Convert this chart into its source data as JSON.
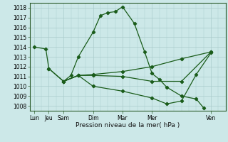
{
  "xlabel": "Pression niveau de la mer( hPa )",
  "bg_color": "#cce8e8",
  "grid_color": "#aacccc",
  "line_color": "#1a5c1a",
  "tick_labels": [
    "Lun",
    "Jeu",
    "Sam",
    "Dim",
    "Mar",
    "Mer",
    "Ven"
  ],
  "tick_positions": [
    0,
    1,
    2,
    4,
    6,
    8,
    12
  ],
  "xlim": [
    -0.3,
    13.0
  ],
  "ylim": [
    1007.5,
    1018.5
  ],
  "yticks": [
    1008,
    1009,
    1010,
    1011,
    1012,
    1013,
    1014,
    1015,
    1016,
    1017,
    1018
  ],
  "series": [
    {
      "x": [
        0,
        0.8,
        1.0,
        2.0,
        2.5,
        3.0,
        4.0,
        4.5,
        5.0,
        5.5,
        6.0,
        6.8,
        7.5,
        8.0,
        8.5,
        9.0,
        10.0,
        11.0,
        11.5
      ],
      "y": [
        1014.0,
        1013.8,
        1011.8,
        1010.5,
        1011.1,
        1013.0,
        1015.5,
        1017.2,
        1017.5,
        1017.6,
        1018.1,
        1016.4,
        1013.5,
        1011.3,
        1010.7,
        1009.9,
        1009.0,
        1008.7,
        1007.8
      ]
    },
    {
      "x": [
        1.0,
        2.0,
        3.0,
        4.0,
        6.0,
        8.0,
        10.0,
        12.0
      ],
      "y": [
        1011.8,
        1010.5,
        1011.1,
        1011.2,
        1011.5,
        1012.0,
        1012.8,
        1013.5
      ]
    },
    {
      "x": [
        2.0,
        3.0,
        4.0,
        6.0,
        8.0,
        10.0,
        12.0
      ],
      "y": [
        1010.5,
        1011.1,
        1011.1,
        1011.0,
        1010.5,
        1010.5,
        1013.5
      ]
    },
    {
      "x": [
        2.0,
        3.0,
        4.0,
        6.0,
        8.0,
        9.0,
        10.0,
        11.0,
        12.0
      ],
      "y": [
        1010.5,
        1011.1,
        1010.0,
        1009.5,
        1008.8,
        1008.2,
        1008.5,
        1011.2,
        1013.4
      ]
    }
  ]
}
